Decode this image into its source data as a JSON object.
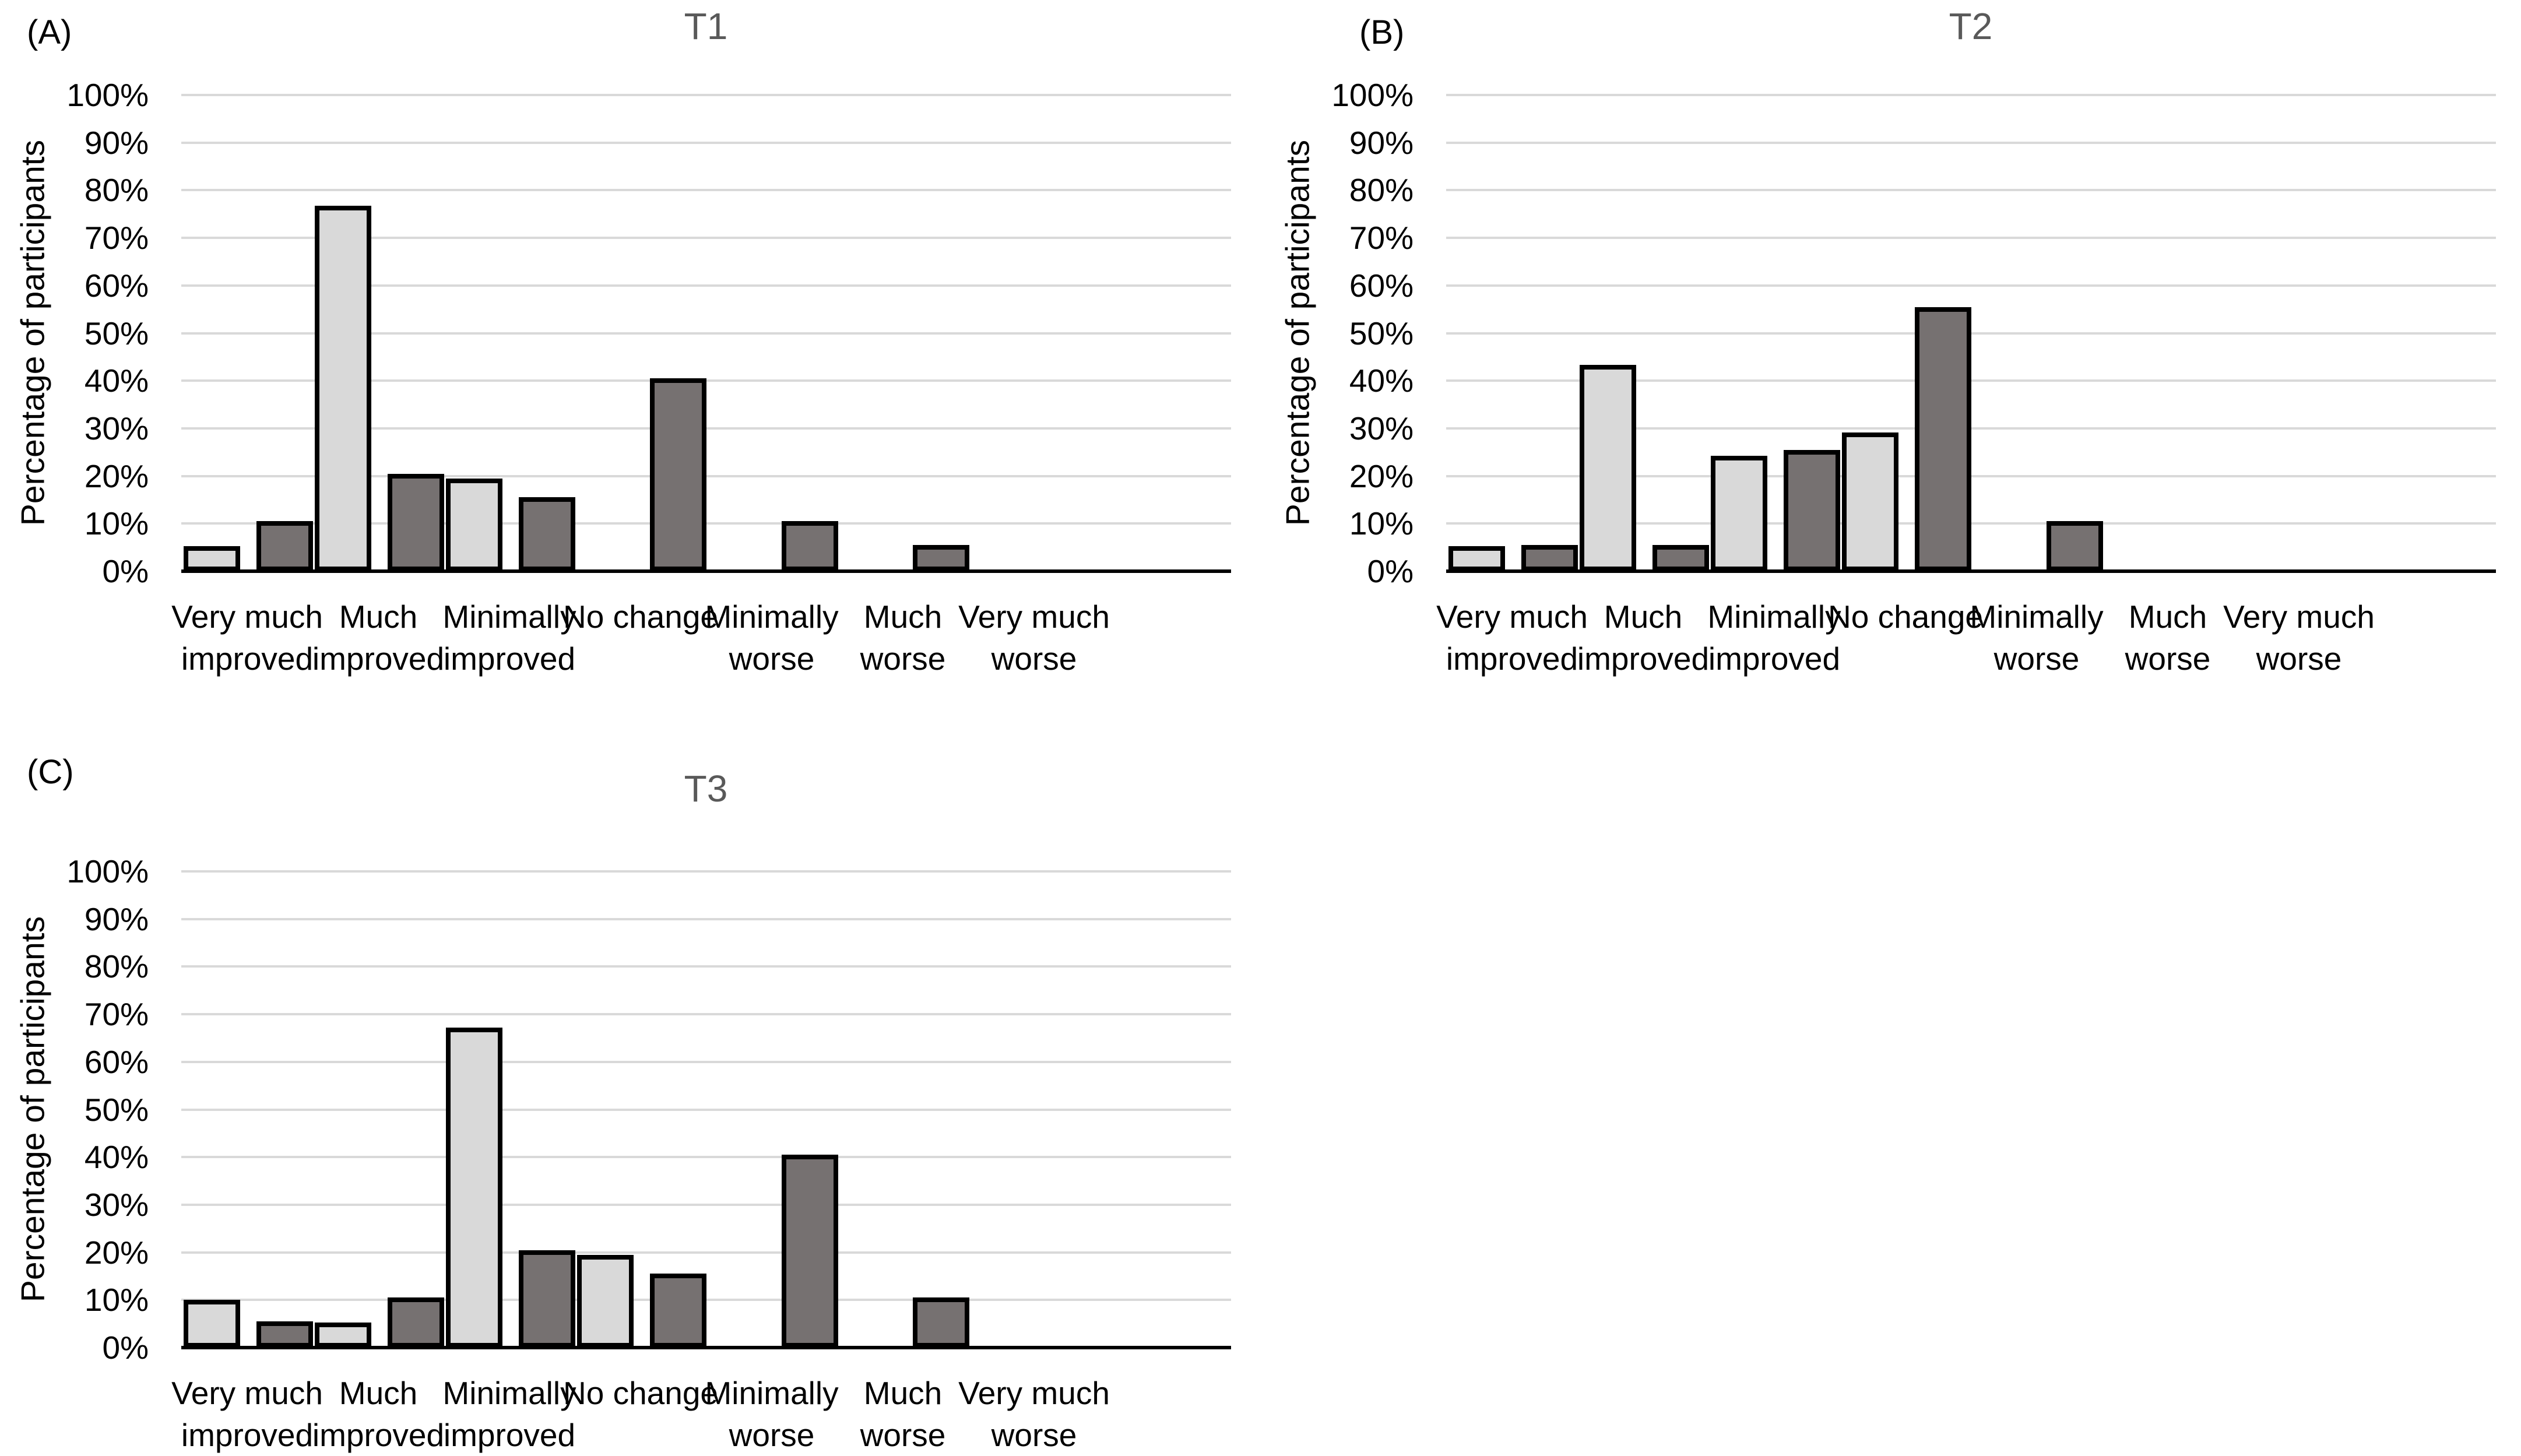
{
  "figure": {
    "background": "#ffffff",
    "title_color": "#595959",
    "text_color": "#000000",
    "gridline_color": "#d9d9d9",
    "axis_line_color": "#000000",
    "bar_border_color": "#000000",
    "series_colors": {
      "light_gray": "#d9d9d9",
      "dark_gray": "#767171"
    }
  },
  "panels": [
    {
      "label": "(A)",
      "title": "T1",
      "y_axis_title": "Percentage of participants"
    },
    {
      "label": "(B)",
      "title": "T2",
      "y_axis_title": "Percentage of participants"
    },
    {
      "label": "(C)",
      "title": "T3",
      "y_axis_title": "Percentage of participants"
    }
  ],
  "y_ticks": [
    "0%",
    "10%",
    "20%",
    "30%",
    "40%",
    "50%",
    "60%",
    "70%",
    "80%",
    "90%",
    "100%"
  ],
  "chart_data": [
    {
      "type": "bar",
      "title": "T1",
      "ylabel": "Percentage of participants",
      "ylim": [
        0,
        100
      ],
      "grid": true,
      "legend": "none",
      "categories": [
        "Very much\nimproved",
        "Much\nimproved",
        "Minimally\nimproved",
        "No change",
        "Minimally\nworse",
        "Much\nworse",
        "Very much\nworse"
      ],
      "series": [
        {
          "name": "light_gray",
          "color": "#d9d9d9",
          "values": [
            4.8,
            76.2,
            19.0,
            0,
            0,
            0,
            0
          ]
        },
        {
          "name": "dark_gray",
          "color": "#767171",
          "values": [
            10,
            20,
            15,
            40,
            10,
            5,
            0
          ]
        }
      ]
    },
    {
      "type": "bar",
      "title": "T2",
      "ylabel": "Percentage of participants",
      "ylim": [
        0,
        100
      ],
      "grid": true,
      "legend": "none",
      "categories": [
        "Very much\nimproved",
        "Much\nimproved",
        "Minimally\nimproved",
        "No change",
        "Minimally\nworse",
        "Much\nworse",
        "Very much\nworse"
      ],
      "series": [
        {
          "name": "light_gray",
          "color": "#d9d9d9",
          "values": [
            4.8,
            42.9,
            23.8,
            28.6,
            0,
            0,
            0
          ]
        },
        {
          "name": "dark_gray",
          "color": "#767171",
          "values": [
            5,
            5,
            25,
            55,
            10,
            0,
            0
          ]
        }
      ]
    },
    {
      "type": "bar",
      "title": "T3",
      "ylabel": "Percentage of participants",
      "ylim": [
        0,
        100
      ],
      "grid": true,
      "legend": "none",
      "categories": [
        "Very much\nimproved",
        "Much\nimproved",
        "Minimally\nimproved",
        "No change",
        "Minimally\nworse",
        "Much\nworse",
        "Very much\nworse"
      ],
      "series": [
        {
          "name": "light_gray",
          "color": "#d9d9d9",
          "values": [
            9.5,
            4.8,
            66.7,
            19.0,
            0,
            0,
            0
          ]
        },
        {
          "name": "dark_gray",
          "color": "#767171",
          "values": [
            5,
            10,
            20,
            15,
            40,
            10,
            0
          ]
        }
      ]
    }
  ]
}
